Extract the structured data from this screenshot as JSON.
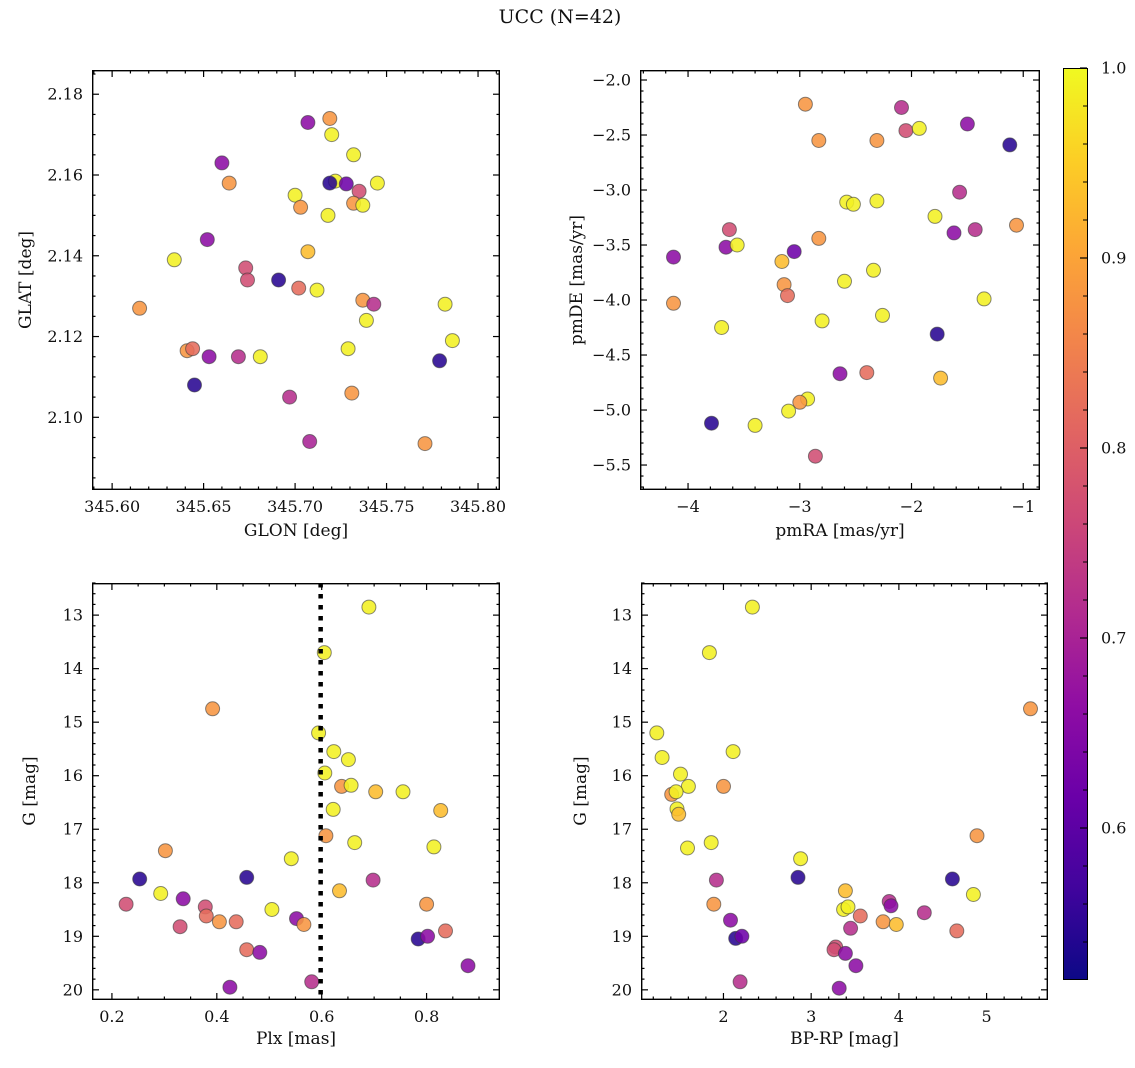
{
  "title": "UCC (N=42)",
  "colorbar": {
    "min": 0.52,
    "max": 1.0,
    "ticks": [
      1.0,
      0.9,
      0.8,
      0.7,
      0.6
    ],
    "tick_labels": [
      "1.0",
      "0.9",
      "0.8",
      "0.7",
      "0.6"
    ],
    "minor_step": 0.02,
    "colormap": "plasma",
    "top_color": "#f0f921",
    "bottom_color": "#0d0887"
  },
  "chart_data": [
    {
      "type": "scatter",
      "xlabel": "GLON [deg]",
      "ylabel": "GLAT [deg]",
      "xlim": [
        345.589,
        345.812
      ],
      "ylim": [
        2.082,
        2.186
      ],
      "xticks": [
        345.6,
        345.65,
        345.7,
        345.75,
        345.8
      ],
      "xtick_labels": [
        "345.60",
        "345.65",
        "345.70",
        "345.75",
        "345.80"
      ],
      "yticks": [
        2.1,
        2.12,
        2.14,
        2.16,
        2.18
      ],
      "ytick_labels": [
        "2.10",
        "2.12",
        "2.14",
        "2.16",
        "2.18"
      ],
      "x_minor_step": 0.01,
      "y_minor_step": 0.005,
      "points": [
        [
          345.707,
          2.173,
          0.66
        ],
        [
          345.719,
          2.174,
          0.88
        ],
        [
          345.72,
          2.17,
          0.99
        ],
        [
          345.732,
          2.165,
          0.99
        ],
        [
          345.66,
          2.163,
          0.66
        ],
        [
          345.664,
          2.158,
          0.88
        ],
        [
          345.722,
          2.1585,
          0.99
        ],
        [
          345.719,
          2.158,
          0.545
        ],
        [
          345.728,
          2.1578,
          0.62
        ],
        [
          345.745,
          2.158,
          0.99
        ],
        [
          345.735,
          2.156,
          0.77
        ],
        [
          345.7,
          2.155,
          0.99
        ],
        [
          345.703,
          2.152,
          0.88
        ],
        [
          345.732,
          2.153,
          0.88
        ],
        [
          345.737,
          2.1525,
          0.99
        ],
        [
          345.718,
          2.15,
          0.99
        ],
        [
          345.652,
          2.144,
          0.66
        ],
        [
          345.634,
          2.139,
          0.99
        ],
        [
          345.707,
          2.141,
          0.93
        ],
        [
          345.673,
          2.137,
          0.77
        ],
        [
          345.674,
          2.134,
          0.77
        ],
        [
          345.691,
          2.134,
          0.545
        ],
        [
          345.702,
          2.132,
          0.82
        ],
        [
          345.712,
          2.1315,
          0.99
        ],
        [
          345.737,
          2.129,
          0.88
        ],
        [
          345.743,
          2.128,
          0.72
        ],
        [
          345.782,
          2.128,
          0.99
        ],
        [
          345.615,
          2.127,
          0.88
        ],
        [
          345.739,
          2.124,
          0.99
        ],
        [
          345.729,
          2.117,
          0.99
        ],
        [
          345.786,
          2.119,
          0.99
        ],
        [
          345.641,
          2.1165,
          0.88
        ],
        [
          345.644,
          2.117,
          0.82
        ],
        [
          345.653,
          2.115,
          0.66
        ],
        [
          345.669,
          2.115,
          0.72
        ],
        [
          345.681,
          2.115,
          0.99
        ],
        [
          345.779,
          2.114,
          0.545
        ],
        [
          345.645,
          2.108,
          0.545
        ],
        [
          345.697,
          2.105,
          0.72
        ],
        [
          345.731,
          2.106,
          0.88
        ],
        [
          345.708,
          2.094,
          0.7
        ],
        [
          345.771,
          2.0935,
          0.88
        ]
      ]
    },
    {
      "type": "scatter",
      "xlabel": "pmRA [mas/yr]",
      "ylabel": "pmDE [mas/yr]",
      "xlim": [
        -4.43,
        -0.85
      ],
      "ylim": [
        -5.727,
        -1.909
      ],
      "xticks": [
        -4,
        -3,
        -2,
        -1
      ],
      "xtick_labels": [
        "−4",
        "−3",
        "−2",
        "−1"
      ],
      "yticks": [
        -2.0,
        -2.5,
        -3.0,
        -3.5,
        -4.0,
        -4.5,
        -5.0,
        -5.5
      ],
      "ytick_labels": [
        "−2.0",
        "−2.5",
        "−3.0",
        "−3.5",
        "−4.0",
        "−4.5",
        "−5.0",
        "−5.5"
      ],
      "x_minor_step": 0.2,
      "y_minor_step": 0.1,
      "points": [
        [
          -2.95,
          -2.22,
          0.88
        ],
        [
          -2.09,
          -2.25,
          0.72
        ],
        [
          -1.5,
          -2.4,
          0.66
        ],
        [
          -2.05,
          -2.46,
          0.77
        ],
        [
          -1.93,
          -2.44,
          0.99
        ],
        [
          -1.12,
          -2.59,
          0.545
        ],
        [
          -2.83,
          -2.55,
          0.88
        ],
        [
          -2.31,
          -2.55,
          0.88
        ],
        [
          -1.57,
          -3.02,
          0.72
        ],
        [
          -2.58,
          -3.11,
          0.99
        ],
        [
          -2.52,
          -3.13,
          0.99
        ],
        [
          -2.31,
          -3.1,
          0.99
        ],
        [
          -1.79,
          -3.24,
          0.99
        ],
        [
          -1.62,
          -3.39,
          0.66
        ],
        [
          -1.43,
          -3.36,
          0.72
        ],
        [
          -1.06,
          -3.32,
          0.88
        ],
        [
          -3.63,
          -3.36,
          0.77
        ],
        [
          -3.66,
          -3.52,
          0.66
        ],
        [
          -3.56,
          -3.5,
          0.99
        ],
        [
          -4.13,
          -3.61,
          0.66
        ],
        [
          -2.83,
          -3.44,
          0.88
        ],
        [
          -3.16,
          -3.65,
          0.93
        ],
        [
          -3.05,
          -3.56,
          0.62
        ],
        [
          -2.6,
          -3.83,
          0.99
        ],
        [
          -2.34,
          -3.73,
          0.99
        ],
        [
          -3.14,
          -3.86,
          0.88
        ],
        [
          -3.11,
          -3.96,
          0.82
        ],
        [
          -4.13,
          -4.03,
          0.88
        ],
        [
          -1.35,
          -3.99,
          0.99
        ],
        [
          -3.7,
          -4.25,
          0.99
        ],
        [
          -2.8,
          -4.19,
          0.99
        ],
        [
          -2.26,
          -4.14,
          0.99
        ],
        [
          -1.77,
          -4.31,
          0.545
        ],
        [
          -2.64,
          -4.67,
          0.66
        ],
        [
          -2.4,
          -4.66,
          0.82
        ],
        [
          -1.74,
          -4.71,
          0.93
        ],
        [
          -2.93,
          -4.9,
          0.99
        ],
        [
          -3.0,
          -4.93,
          0.88
        ],
        [
          -3.1,
          -5.01,
          0.99
        ],
        [
          -3.79,
          -5.12,
          0.545
        ],
        [
          -3.4,
          -5.14,
          0.99
        ],
        [
          -2.86,
          -5.42,
          0.77
        ]
      ]
    },
    {
      "type": "scatter",
      "xlabel": "Plx [mas]",
      "ylabel": "G [mag]",
      "xlim": [
        0.162,
        0.94
      ],
      "ylim": [
        20.19,
        12.4
      ],
      "xticks": [
        0.2,
        0.4,
        0.6,
        0.8
      ],
      "xtick_labels": [
        "0.2",
        "0.4",
        "0.6",
        "0.8"
      ],
      "yticks": [
        13,
        14,
        15,
        16,
        17,
        18,
        19,
        20
      ],
      "ytick_labels": [
        "13",
        "14",
        "15",
        "16",
        "17",
        "18",
        "19",
        "20"
      ],
      "x_minor_step": 0.05,
      "y_minor_step": 0.2,
      "vline_x": 0.598,
      "points": [
        [
          0.69,
          12.85,
          0.99
        ],
        [
          0.605,
          13.7,
          0.99
        ],
        [
          0.392,
          14.75,
          0.88
        ],
        [
          0.594,
          15.2,
          0.99
        ],
        [
          0.623,
          15.55,
          0.99
        ],
        [
          0.651,
          15.7,
          0.99
        ],
        [
          0.606,
          15.95,
          0.99
        ],
        [
          0.638,
          16.2,
          0.88
        ],
        [
          0.656,
          16.18,
          0.99
        ],
        [
          0.703,
          16.3,
          0.93
        ],
        [
          0.755,
          16.3,
          0.99
        ],
        [
          0.622,
          16.63,
          0.99
        ],
        [
          0.827,
          16.65,
          0.93
        ],
        [
          0.608,
          17.12,
          0.88
        ],
        [
          0.663,
          17.25,
          0.99
        ],
        [
          0.814,
          17.33,
          0.99
        ],
        [
          0.302,
          17.4,
          0.88
        ],
        [
          0.542,
          17.55,
          0.99
        ],
        [
          0.253,
          17.93,
          0.545
        ],
        [
          0.457,
          17.9,
          0.545
        ],
        [
          0.698,
          17.95,
          0.72
        ],
        [
          0.293,
          18.2,
          0.99
        ],
        [
          0.634,
          18.15,
          0.93
        ],
        [
          0.336,
          18.3,
          0.66
        ],
        [
          0.227,
          18.4,
          0.77
        ],
        [
          0.378,
          18.45,
          0.77
        ],
        [
          0.505,
          18.5,
          0.99
        ],
        [
          0.8,
          18.4,
          0.88
        ],
        [
          0.38,
          18.62,
          0.82
        ],
        [
          0.405,
          18.73,
          0.88
        ],
        [
          0.437,
          18.73,
          0.82
        ],
        [
          0.552,
          18.67,
          0.66
        ],
        [
          0.566,
          18.78,
          0.88
        ],
        [
          0.33,
          18.82,
          0.77
        ],
        [
          0.784,
          19.05,
          0.545
        ],
        [
          0.802,
          19.0,
          0.66
        ],
        [
          0.836,
          18.9,
          0.82
        ],
        [
          0.457,
          19.25,
          0.82
        ],
        [
          0.482,
          19.3,
          0.66
        ],
        [
          0.879,
          19.55,
          0.66
        ],
        [
          0.581,
          19.85,
          0.72
        ],
        [
          0.425,
          19.95,
          0.66
        ]
      ]
    },
    {
      "type": "scatter",
      "xlabel": "BP-RP [mag]",
      "ylabel": "G [mag]",
      "xlim": [
        1.06,
        5.7
      ],
      "ylim": [
        20.19,
        12.4
      ],
      "xticks": [
        2,
        3,
        4,
        5
      ],
      "xtick_labels": [
        "2",
        "3",
        "4",
        "5"
      ],
      "yticks": [
        13,
        14,
        15,
        16,
        17,
        18,
        19,
        20
      ],
      "ytick_labels": [
        "13",
        "14",
        "15",
        "16",
        "17",
        "18",
        "19",
        "20"
      ],
      "x_minor_step": 0.2,
      "y_minor_step": 0.2,
      "points": [
        [
          2.33,
          12.85,
          0.99
        ],
        [
          1.84,
          13.7,
          0.99
        ],
        [
          5.5,
          14.75,
          0.88
        ],
        [
          1.24,
          15.2,
          0.99
        ],
        [
          1.3,
          15.66,
          0.99
        ],
        [
          2.11,
          15.55,
          0.99
        ],
        [
          1.51,
          15.97,
          0.99
        ],
        [
          1.6,
          16.2,
          0.99
        ],
        [
          1.41,
          16.35,
          0.88
        ],
        [
          1.46,
          16.3,
          0.99
        ],
        [
          2.0,
          16.2,
          0.88
        ],
        [
          1.47,
          16.62,
          0.99
        ],
        [
          1.49,
          16.72,
          0.93
        ],
        [
          1.59,
          17.35,
          0.99
        ],
        [
          1.86,
          17.25,
          0.99
        ],
        [
          2.88,
          17.55,
          0.99
        ],
        [
          1.92,
          17.95,
          0.72
        ],
        [
          2.85,
          17.9,
          0.545
        ],
        [
          1.89,
          18.4,
          0.88
        ],
        [
          3.39,
          18.15,
          0.93
        ],
        [
          3.37,
          18.5,
          0.99
        ],
        [
          3.42,
          18.45,
          0.99
        ],
        [
          3.56,
          18.62,
          0.82
        ],
        [
          3.45,
          18.85,
          0.72
        ],
        [
          2.08,
          18.7,
          0.66
        ],
        [
          3.89,
          18.35,
          0.72
        ],
        [
          3.91,
          18.43,
          0.66
        ],
        [
          4.29,
          18.56,
          0.72
        ],
        [
          3.82,
          18.73,
          0.88
        ],
        [
          3.97,
          18.78,
          0.93
        ],
        [
          4.61,
          17.93,
          0.545
        ],
        [
          4.85,
          18.22,
          0.99
        ],
        [
          4.89,
          17.12,
          0.88
        ],
        [
          4.66,
          18.9,
          0.82
        ],
        [
          2.14,
          19.04,
          0.545
        ],
        [
          2.21,
          19.0,
          0.62
        ],
        [
          3.28,
          19.2,
          0.77
        ],
        [
          3.26,
          19.25,
          0.77
        ],
        [
          3.39,
          19.32,
          0.66
        ],
        [
          3.51,
          19.55,
          0.66
        ],
        [
          2.19,
          19.85,
          0.72
        ],
        [
          3.32,
          19.97,
          0.66
        ]
      ]
    }
  ]
}
